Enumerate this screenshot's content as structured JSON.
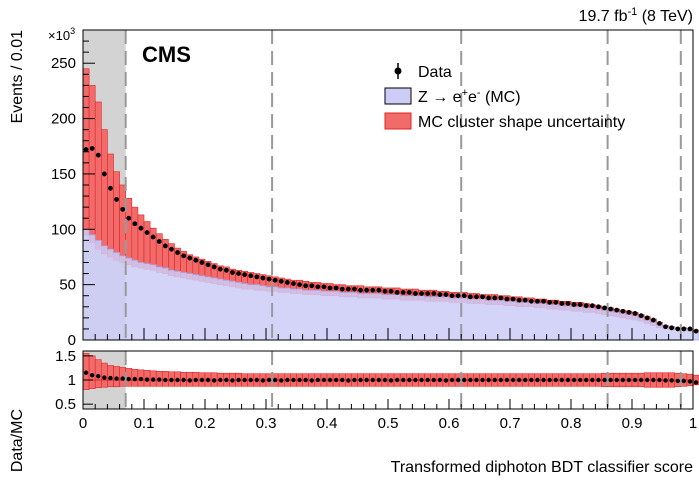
{
  "chart_data": {
    "type": "histogram",
    "top_right_label": {
      "value": "19.7",
      "unit": "fb",
      "exp": "-1",
      "suffix": "(8 TeV)"
    },
    "experiment_label": "CMS",
    "scale_factor_label": {
      "prefix": "×10",
      "exp": "3"
    },
    "xlabel": "Transformed diphoton BDT classifier score",
    "ylabel_main": "Events / 0.01",
    "ylabel_ratio": "Data/MC",
    "xlim": [
      0,
      1
    ],
    "ylim_main": [
      0,
      280
    ],
    "ylim_ratio": [
      0.4,
      1.6
    ],
    "x_ticks": [
      "0",
      "0.1",
      "0.2",
      "0.3",
      "0.4",
      "0.5",
      "0.6",
      "0.7",
      "0.8",
      "0.9",
      "1"
    ],
    "x_tick_values": [
      0,
      0.1,
      0.2,
      0.3,
      0.4,
      0.5,
      0.6,
      0.7,
      0.8,
      0.9,
      1.0
    ],
    "y_ticks_main": [
      "0",
      "50",
      "100",
      "150",
      "200",
      "250"
    ],
    "y_tick_values_main": [
      0,
      50,
      100,
      150,
      200,
      250
    ],
    "y_ticks_ratio": [
      "0.5",
      "1",
      "1.5"
    ],
    "y_tick_values_ratio": [
      0.5,
      1.0,
      1.5
    ],
    "shaded_region": [
      0,
      0.07
    ],
    "category_boundaries": [
      0.07,
      0.31,
      0.62,
      0.86,
      0.98
    ],
    "bin_width": 0.01,
    "legend": {
      "placement": "top-right",
      "entries": {
        "data": "Data",
        "mc": {
          "prefix": "Z → e",
          "sup1": "+",
          "mid": "e",
          "sup2": "-",
          "suffix": " (MC)"
        },
        "unc": "MC cluster shape uncertainty"
      }
    },
    "colors": {
      "mc_fill": "#ccccf7",
      "mc_line": "#a2a2e6",
      "band_fill": "#f26b6b",
      "band_line": "#e02424",
      "shade": "#d3d3d3",
      "boundary": "#999999"
    },
    "series": {
      "data": [
        172,
        173,
        167,
        150,
        137,
        127,
        118,
        110,
        105,
        101,
        97,
        93,
        89,
        85,
        82,
        79,
        76,
        74,
        72,
        70,
        68,
        66,
        64,
        63,
        61,
        60,
        59,
        58,
        57,
        56,
        55,
        54,
        53,
        52,
        51,
        50,
        49,
        49,
        48,
        48,
        47,
        47,
        46,
        46,
        46,
        45,
        45,
        45,
        45,
        44,
        44,
        43,
        43,
        43,
        42,
        42,
        42,
        42,
        41,
        41,
        40,
        40,
        40,
        39,
        39,
        39,
        38,
        38,
        38,
        37,
        37,
        36,
        36,
        35,
        35,
        35,
        34,
        34,
        33,
        33,
        32,
        32,
        31,
        31,
        30,
        29,
        28,
        27,
        26,
        25,
        24,
        22,
        20,
        18,
        15,
        12,
        11,
        10,
        10,
        10,
        8
      ],
      "mc": [
        100,
        95,
        90,
        85,
        82,
        79,
        76,
        74,
        72,
        70,
        69,
        68,
        66,
        65,
        63,
        62,
        61,
        60,
        59,
        58,
        57,
        56,
        55,
        54,
        53,
        52,
        51,
        50,
        50,
        49,
        48,
        48,
        47,
        47,
        46,
        46,
        45,
        45,
        45,
        44,
        44,
        44,
        43,
        43,
        43,
        42,
        42,
        42,
        42,
        41,
        41,
        41,
        40,
        40,
        40,
        40,
        39,
        39,
        39,
        39,
        38,
        38,
        38,
        37,
        37,
        37,
        36,
        36,
        36,
        35,
        35,
        34,
        34,
        34,
        33,
        33,
        32,
        32,
        31,
        31,
        30,
        30,
        29,
        29,
        28,
        27,
        26,
        25,
        24,
        23,
        22,
        20,
        18,
        16,
        14,
        12,
        11,
        10,
        10,
        10,
        8
      ],
      "band_high": [
        245,
        230,
        215,
        190,
        168,
        152,
        140,
        128,
        120,
        113,
        107,
        101,
        96,
        91,
        87,
        83,
        80,
        77,
        75,
        73,
        71,
        69,
        67,
        66,
        64,
        63,
        62,
        61,
        60,
        59,
        58,
        57,
        56,
        55,
        54,
        54,
        53,
        52,
        52,
        51,
        51,
        50,
        50,
        49,
        49,
        49,
        48,
        48,
        48,
        47,
        47,
        47,
        46,
        46,
        46,
        45,
        45,
        45,
        44,
        44,
        43,
        43,
        43,
        42,
        42,
        41,
        41,
        41,
        40,
        40,
        39,
        39,
        38,
        38,
        37,
        37,
        36,
        36,
        35,
        35,
        34,
        34,
        33,
        32,
        31,
        30,
        29,
        28,
        27,
        26,
        25,
        23,
        21,
        19,
        16,
        13,
        12,
        11,
        11,
        10,
        9
      ],
      "band_low": [
        95,
        88,
        82,
        78,
        75,
        72,
        70,
        68,
        66,
        65,
        64,
        63,
        61,
        60,
        58,
        57,
        56,
        55,
        54,
        53,
        52,
        51,
        50,
        49,
        48,
        47,
        46,
        46,
        45,
        45,
        44,
        44,
        43,
        43,
        42,
        42,
        41,
        41,
        41,
        40,
        40,
        40,
        39,
        39,
        39,
        38,
        38,
        38,
        38,
        37,
        37,
        37,
        36,
        36,
        36,
        36,
        35,
        35,
        35,
        35,
        34,
        34,
        34,
        33,
        33,
        33,
        32,
        32,
        32,
        31,
        31,
        30,
        30,
        30,
        29,
        29,
        28,
        28,
        27,
        27,
        26,
        26,
        25,
        25,
        24,
        23,
        22,
        21,
        20,
        19,
        18,
        17,
        15,
        13,
        11,
        10,
        9,
        9,
        9,
        8,
        7
      ],
      "ratio": [
        1.15,
        1.1,
        1.08,
        1.05,
        1.04,
        1.03,
        1.03,
        1.02,
        1.02,
        1.02,
        1.01,
        1.01,
        1.01,
        1.0,
        1.0,
        1.0,
        1.0,
        0.99,
        1.0,
        1.0,
        1.0,
        0.99,
        1.0,
        1.0,
        0.99,
        1.0,
        1.0,
        1.0,
        1.0,
        0.99,
        1.0,
        1.0,
        0.99,
        1.0,
        1.0,
        1.0,
        1.0,
        0.99,
        1.0,
        1.0,
        1.0,
        1.0,
        1.0,
        0.99,
        1.0,
        1.0,
        1.0,
        1.0,
        1.0,
        1.0,
        0.99,
        1.0,
        1.0,
        1.0,
        1.0,
        1.0,
        1.0,
        1.0,
        1.0,
        0.99,
        1.0,
        1.0,
        1.0,
        1.0,
        1.0,
        1.0,
        1.0,
        1.0,
        1.0,
        1.0,
        1.0,
        1.0,
        1.0,
        1.0,
        1.0,
        1.0,
        1.0,
        1.0,
        1.0,
        1.0,
        1.0,
        1.0,
        1.0,
        1.0,
        1.0,
        1.0,
        1.0,
        1.0,
        1.0,
        1.0,
        1.0,
        1.0,
        1.0,
        1.0,
        1.0,
        0.99,
        0.99,
        0.98,
        0.98,
        0.97,
        0.95
      ],
      "ratio_band_high": [
        1.55,
        1.5,
        1.42,
        1.35,
        1.3,
        1.28,
        1.26,
        1.24,
        1.22,
        1.21,
        1.2,
        1.19,
        1.18,
        1.18,
        1.17,
        1.17,
        1.16,
        1.16,
        1.16,
        1.15,
        1.15,
        1.15,
        1.14,
        1.14,
        1.14,
        1.14,
        1.13,
        1.13,
        1.13,
        1.13,
        1.13,
        1.13,
        1.13,
        1.13,
        1.13,
        1.13,
        1.13,
        1.13,
        1.13,
        1.13,
        1.13,
        1.13,
        1.13,
        1.13,
        1.13,
        1.13,
        1.13,
        1.13,
        1.13,
        1.13,
        1.13,
        1.13,
        1.13,
        1.13,
        1.13,
        1.13,
        1.13,
        1.13,
        1.13,
        1.13,
        1.13,
        1.13,
        1.13,
        1.13,
        1.13,
        1.13,
        1.13,
        1.13,
        1.13,
        1.13,
        1.13,
        1.13,
        1.13,
        1.13,
        1.13,
        1.13,
        1.13,
        1.13,
        1.13,
        1.13,
        1.13,
        1.13,
        1.13,
        1.13,
        1.13,
        1.14,
        1.14,
        1.14,
        1.14,
        1.14,
        1.14,
        1.14,
        1.15,
        1.15,
        1.15,
        1.15,
        1.15,
        1.14,
        1.13,
        1.12,
        1.1
      ],
      "ratio_band_low": [
        0.8,
        0.82,
        0.84,
        0.85,
        0.86,
        0.86,
        0.87,
        0.87,
        0.87,
        0.87,
        0.87,
        0.87,
        0.87,
        0.87,
        0.87,
        0.87,
        0.87,
        0.87,
        0.87,
        0.87,
        0.87,
        0.87,
        0.87,
        0.87,
        0.87,
        0.87,
        0.87,
        0.87,
        0.87,
        0.87,
        0.87,
        0.87,
        0.87,
        0.87,
        0.87,
        0.87,
        0.87,
        0.87,
        0.87,
        0.87,
        0.87,
        0.87,
        0.87,
        0.87,
        0.87,
        0.87,
        0.87,
        0.87,
        0.87,
        0.87,
        0.87,
        0.87,
        0.87,
        0.87,
        0.87,
        0.87,
        0.87,
        0.87,
        0.87,
        0.87,
        0.87,
        0.87,
        0.87,
        0.87,
        0.87,
        0.87,
        0.87,
        0.87,
        0.87,
        0.87,
        0.87,
        0.87,
        0.87,
        0.87,
        0.87,
        0.87,
        0.87,
        0.87,
        0.87,
        0.87,
        0.87,
        0.87,
        0.87,
        0.87,
        0.87,
        0.86,
        0.86,
        0.86,
        0.86,
        0.86,
        0.86,
        0.86,
        0.85,
        0.85,
        0.85,
        0.85,
        0.85,
        0.86,
        0.87,
        0.88,
        0.9
      ]
    }
  }
}
